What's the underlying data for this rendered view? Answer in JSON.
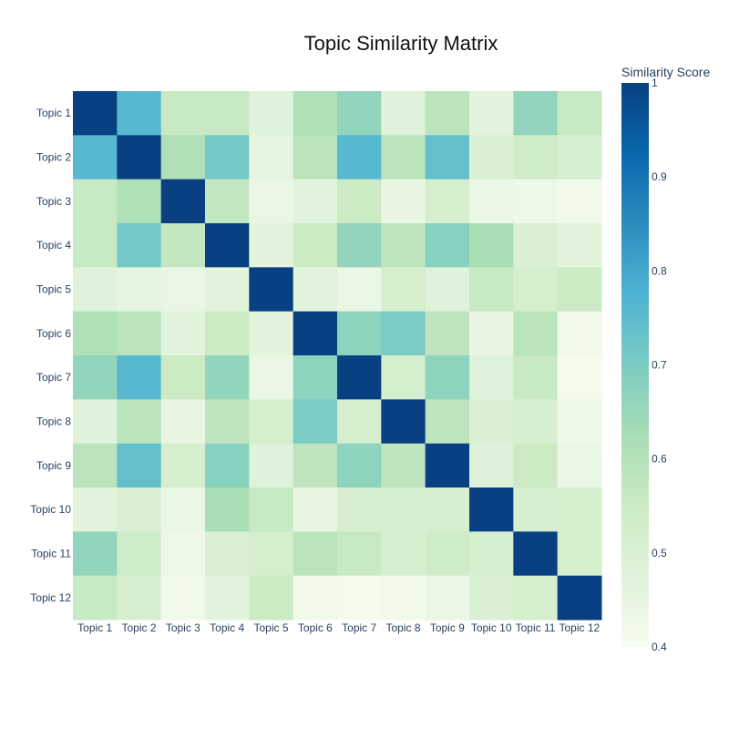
{
  "chart_data": {
    "type": "heatmap",
    "title": "Topic Similarity Matrix",
    "x_labels": [
      "Topic 1",
      "Topic 2",
      "Topic 3",
      "Topic 4",
      "Topic 5",
      "Topic 6",
      "Topic 7",
      "Topic 8",
      "Topic 9",
      "Topic 10",
      "Topic 11",
      "Topic 12"
    ],
    "y_labels": [
      "Topic 1",
      "Topic 2",
      "Topic 3",
      "Topic 4",
      "Topic 5",
      "Topic 6",
      "Topic 7",
      "Topic 8",
      "Topic 9",
      "Topic 10",
      "Topic 11",
      "Topic 12"
    ],
    "values": [
      [
        1.0,
        0.76,
        0.56,
        0.56,
        0.48,
        0.61,
        0.66,
        0.48,
        0.59,
        0.47,
        0.66,
        0.56
      ],
      [
        0.76,
        1.0,
        0.61,
        0.71,
        0.46,
        0.59,
        0.76,
        0.59,
        0.74,
        0.5,
        0.54,
        0.51
      ],
      [
        0.56,
        0.61,
        1.0,
        0.57,
        0.44,
        0.47,
        0.55,
        0.45,
        0.52,
        0.44,
        0.43,
        0.42
      ],
      [
        0.56,
        0.71,
        0.57,
        1.0,
        0.47,
        0.55,
        0.66,
        0.58,
        0.68,
        0.62,
        0.5,
        0.47
      ],
      [
        0.48,
        0.46,
        0.44,
        0.47,
        1.0,
        0.47,
        0.44,
        0.52,
        0.48,
        0.56,
        0.52,
        0.55
      ],
      [
        0.61,
        0.59,
        0.47,
        0.55,
        0.47,
        1.0,
        0.67,
        0.7,
        0.58,
        0.45,
        0.59,
        0.42
      ],
      [
        0.66,
        0.76,
        0.55,
        0.66,
        0.44,
        0.67,
        1.0,
        0.52,
        0.67,
        0.48,
        0.56,
        0.41
      ],
      [
        0.48,
        0.59,
        0.45,
        0.58,
        0.52,
        0.7,
        0.52,
        1.0,
        0.58,
        0.5,
        0.51,
        0.43
      ],
      [
        0.59,
        0.74,
        0.52,
        0.68,
        0.48,
        0.58,
        0.67,
        0.58,
        1.0,
        0.49,
        0.55,
        0.44
      ],
      [
        0.47,
        0.5,
        0.44,
        0.62,
        0.56,
        0.45,
        0.51,
        0.51,
        0.51,
        1.0,
        0.51,
        0.52
      ],
      [
        0.66,
        0.54,
        0.43,
        0.5,
        0.52,
        0.59,
        0.56,
        0.51,
        0.54,
        0.51,
        1.0,
        0.52
      ],
      [
        0.56,
        0.51,
        0.42,
        0.47,
        0.55,
        0.42,
        0.41,
        0.42,
        0.44,
        0.5,
        0.52,
        1.0
      ]
    ],
    "zmin": 0.4,
    "zmax": 1.0,
    "colorscale_name": "GnBu",
    "colorscale": [
      "#f7fcf0",
      "#e0f3db",
      "#ccebc5",
      "#a8ddb5",
      "#7bccc4",
      "#4eb3d3",
      "#2b8cbe",
      "#0868ac",
      "#084081"
    ],
    "colorbar": {
      "title": "Similarity Score",
      "tickvals": [
        0.4,
        0.5,
        0.6,
        0.7,
        0.8,
        0.9,
        1.0
      ],
      "ticklabels": [
        "0.4",
        "0.5",
        "0.6",
        "0.7",
        "0.8",
        "0.9",
        "1"
      ]
    }
  }
}
